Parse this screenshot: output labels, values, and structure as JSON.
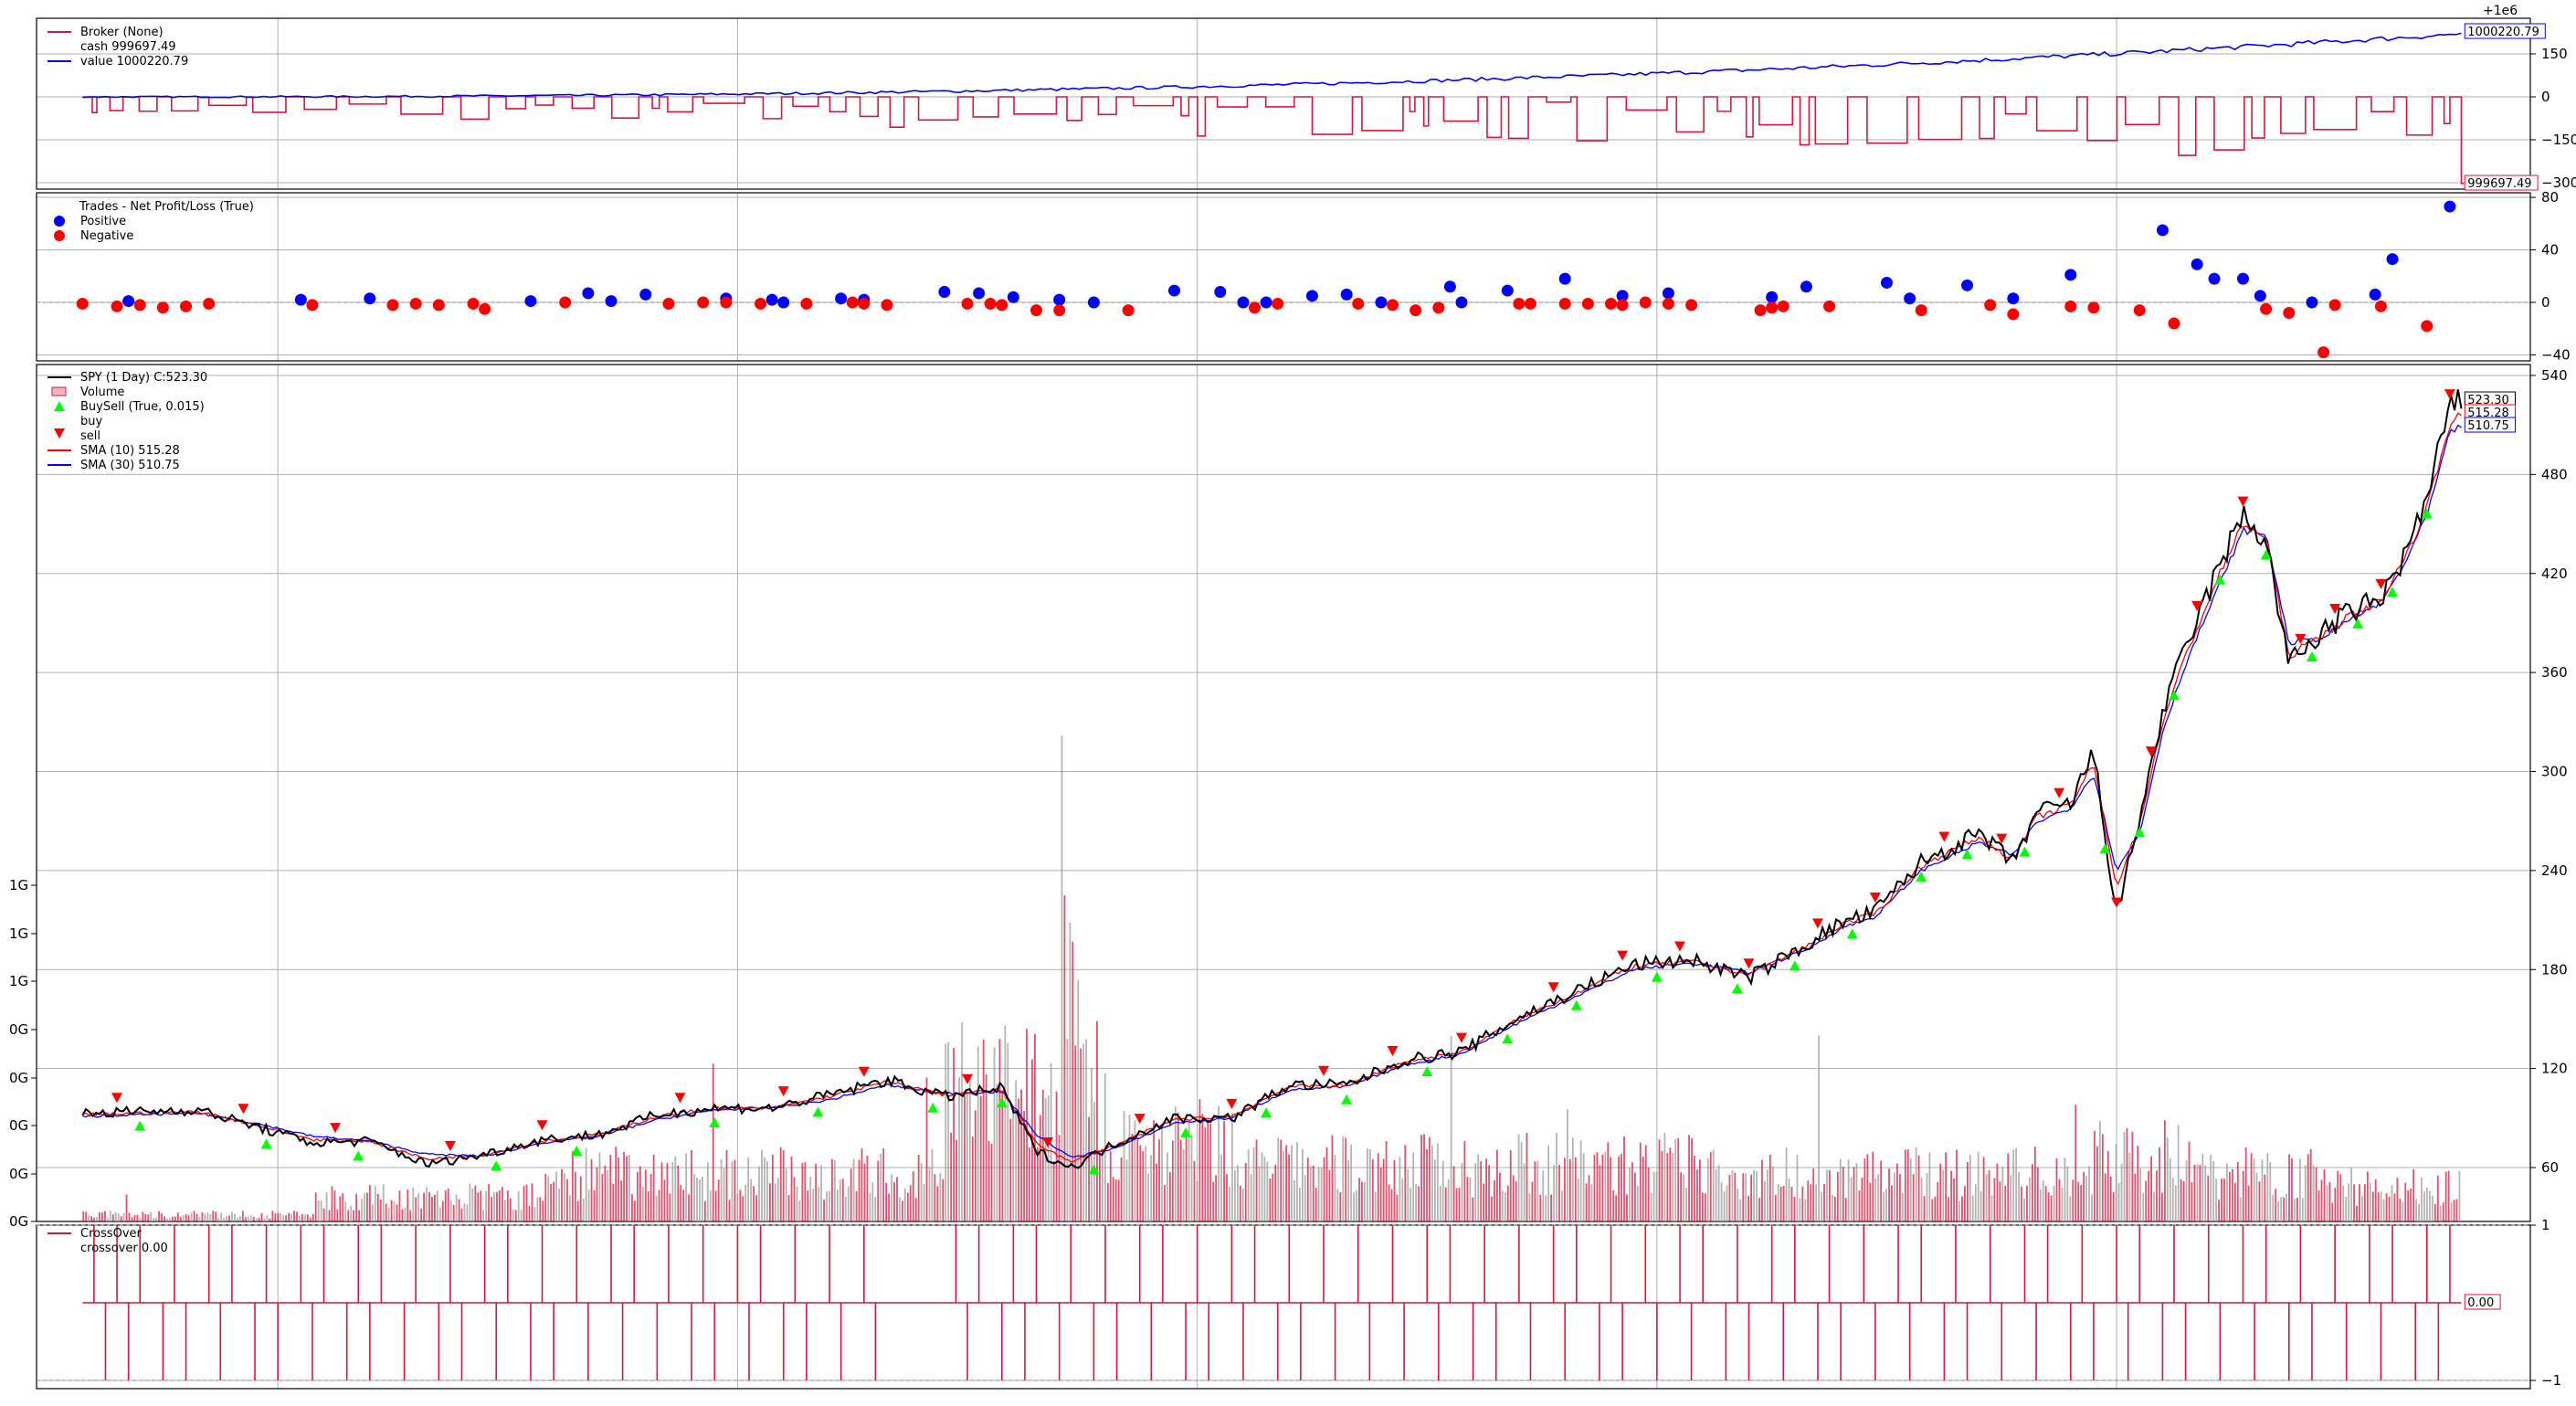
{
  "chart_data": [
    {
      "type": "line",
      "panel": "broker",
      "legend": {
        "placement": "top-left",
        "entries": [
          {
            "name": "Broker (None)",
            "detail": "cash 999697.49",
            "color": "#dc143c"
          },
          {
            "name": "",
            "detail": "value 1000220.79",
            "color": "#0000ff"
          }
        ]
      },
      "offset_label": "+1e6",
      "y_offset": 1000000,
      "yticks": [
        150,
        0,
        -150,
        -300
      ],
      "ytick_labels": [
        "150",
        "0",
        "−150",
        "−300"
      ],
      "ylim": [
        -310,
        200
      ],
      "grid": true,
      "last_value_tags": {
        "value": "1000220.79",
        "cash": "999697.49"
      },
      "series": [
        {
          "name": "value",
          "color": "#0000ff",
          "x_range": [
            2005.0,
            2024.2
          ],
          "start": 0,
          "end": 220.79
        },
        {
          "name": "cash",
          "color": "#dc143c",
          "baseline": 0,
          "end": -302.51
        }
      ]
    },
    {
      "type": "scatter",
      "panel": "trades",
      "legend": {
        "placement": "top-left",
        "title": "Trades - Net Profit/Loss (True)",
        "entries": [
          {
            "name": "Positive",
            "color": "#0000ff"
          },
          {
            "name": "Negative",
            "color": "#ff0000"
          }
        ]
      },
      "yticks": [
        80,
        40,
        0,
        -40
      ],
      "ytick_labels": [
        "80",
        "40",
        "0",
        "−40"
      ],
      "ylim": [
        -45,
        82
      ],
      "grid": true,
      "positive": [
        [
          2005.4,
          1
        ],
        [
          2006.9,
          2
        ],
        [
          2007.5,
          3
        ],
        [
          2008.9,
          1
        ],
        [
          2009.4,
          7
        ],
        [
          2009.6,
          1
        ],
        [
          2009.9,
          6
        ],
        [
          2010.6,
          3
        ],
        [
          2011.0,
          2
        ],
        [
          2011.1,
          0
        ],
        [
          2011.6,
          3
        ],
        [
          2011.8,
          2
        ],
        [
          2012.5,
          8
        ],
        [
          2012.8,
          7
        ],
        [
          2013.1,
          4
        ],
        [
          2013.5,
          2
        ],
        [
          2013.8,
          0
        ],
        [
          2014.5,
          9
        ],
        [
          2014.9,
          8
        ],
        [
          2015.1,
          0
        ],
        [
          2015.3,
          0
        ],
        [
          2015.7,
          5
        ],
        [
          2016.0,
          6
        ],
        [
          2016.3,
          0
        ],
        [
          2016.9,
          12
        ],
        [
          2017.0,
          0
        ],
        [
          2017.4,
          9
        ],
        [
          2017.9,
          18
        ],
        [
          2018.4,
          5
        ],
        [
          2018.8,
          7
        ],
        [
          2019.7,
          4
        ],
        [
          2020.0,
          12
        ],
        [
          2020.7,
          15
        ],
        [
          2020.9,
          3
        ],
        [
          2021.4,
          13
        ],
        [
          2021.8,
          3
        ],
        [
          2022.3,
          21
        ],
        [
          2023.1,
          55
        ],
        [
          2023.4,
          29
        ],
        [
          2023.55,
          18
        ],
        [
          2023.8,
          18
        ],
        [
          2023.95,
          5
        ],
        [
          2024.4,
          0
        ],
        [
          2024.95,
          6
        ],
        [
          2025.1,
          33
        ],
        [
          2025.6,
          73
        ]
      ],
      "negative": [
        [
          2005.0,
          -1
        ],
        [
          2005.3,
          -3
        ],
        [
          2005.5,
          -2
        ],
        [
          2005.7,
          -4
        ],
        [
          2005.9,
          -3
        ],
        [
          2006.1,
          -1
        ],
        [
          2007.0,
          -2
        ],
        [
          2007.7,
          -2
        ],
        [
          2007.9,
          -1
        ],
        [
          2008.1,
          -2
        ],
        [
          2008.4,
          -1
        ],
        [
          2008.5,
          -5
        ],
        [
          2009.2,
          0
        ],
        [
          2010.1,
          -1
        ],
        [
          2010.4,
          0
        ],
        [
          2010.6,
          0
        ],
        [
          2010.9,
          -1
        ],
        [
          2011.3,
          -1
        ],
        [
          2011.7,
          0
        ],
        [
          2011.8,
          -1
        ],
        [
          2012.0,
          -2
        ],
        [
          2012.7,
          -1
        ],
        [
          2012.9,
          -1
        ],
        [
          2013.0,
          -2
        ],
        [
          2013.3,
          -6
        ],
        [
          2013.5,
          -6
        ],
        [
          2014.1,
          -6
        ],
        [
          2015.2,
          -4
        ],
        [
          2015.4,
          -1
        ],
        [
          2016.1,
          -1
        ],
        [
          2016.4,
          -2
        ],
        [
          2016.6,
          -6
        ],
        [
          2016.8,
          -4
        ],
        [
          2017.5,
          -1
        ],
        [
          2017.6,
          -1
        ],
        [
          2017.9,
          -1
        ],
        [
          2018.1,
          -1
        ],
        [
          2018.3,
          -1
        ],
        [
          2018.4,
          -2
        ],
        [
          2018.6,
          0
        ],
        [
          2018.8,
          -1
        ],
        [
          2019.0,
          -2
        ],
        [
          2019.6,
          -6
        ],
        [
          2019.7,
          -4
        ],
        [
          2019.8,
          -3
        ],
        [
          2020.2,
          -3
        ],
        [
          2021.0,
          -6
        ],
        [
          2021.6,
          -2
        ],
        [
          2021.8,
          -9
        ],
        [
          2022.3,
          -3
        ],
        [
          2022.5,
          -4
        ],
        [
          2022.9,
          -6
        ],
        [
          2023.2,
          -16
        ],
        [
          2024.0,
          -5
        ],
        [
          2024.2,
          -8
        ],
        [
          2024.5,
          -38
        ],
        [
          2024.6,
          -2
        ],
        [
          2025.0,
          -3
        ],
        [
          2025.4,
          -18
        ]
      ]
    },
    {
      "type": "line",
      "panel": "price",
      "legend": {
        "placement": "top-left",
        "entries": [
          {
            "name": "SPY (1 Day) C:523.30",
            "color": "#000000"
          },
          {
            "name": "Volume",
            "color": "#dc143c"
          },
          {
            "name": "BuySell (True, 0.015)",
            "detail": "buy",
            "color": "#00ff00"
          },
          {
            "name": "",
            "detail": "sell",
            "color": "#ff0000"
          },
          {
            "name": "SMA (10) 515.28",
            "color": "#ff0000"
          },
          {
            "name": "SMA (30) 510.75",
            "color": "#0000ff"
          }
        ]
      },
      "yticks": [
        540,
        480,
        420,
        360,
        300,
        240,
        180,
        120,
        60
      ],
      "ylim": [
        30,
        545
      ],
      "volume_ticks": [
        "1G",
        "1G",
        "1G",
        "0G",
        "0G",
        "0G",
        "0G",
        "0G"
      ],
      "grid": true,
      "last_value_tags": [
        "523.30",
        "515.28",
        "510.75"
      ],
      "x": [
        2005.0,
        2006.0,
        2006.5,
        2007.0,
        2007.5,
        2008.0,
        2008.5,
        2009.0,
        2009.5,
        2010.0,
        2010.5,
        2011.0,
        2011.5,
        2012.0,
        2012.5,
        2013.0,
        2013.3,
        2013.6,
        2014.0,
        2014.5,
        2015.0,
        2015.5,
        2016.0,
        2016.5,
        2017.0,
        2017.5,
        2018.0,
        2018.5,
        2019.0,
        2019.5,
        2020.0,
        2020.3,
        2020.6,
        2021.0,
        2021.5,
        2021.8,
        2022.0,
        2022.3,
        2022.5,
        2022.7,
        2022.9,
        2023.1,
        2023.3,
        2023.6,
        2023.8,
        2024.0,
        2024.2,
        2024.5,
        2024.7,
        2025.0,
        2025.2,
        2025.4,
        2025.6,
        2025.7
      ],
      "series": [
        {
          "name": "SPY",
          "color": "#000000",
          "values": [
            93,
            95,
            85,
            75,
            76,
            62,
            68,
            77,
            80,
            92,
            96,
            96,
            104,
            113,
            103,
            108,
            70,
            60,
            75,
            90,
            90,
            110,
            110,
            125,
            130,
            151,
            167,
            183,
            186,
            175,
            195,
            208,
            215,
            245,
            262,
            245,
            275,
            280,
            312,
            212,
            272,
            335,
            375,
            425,
            455,
            440,
            365,
            385,
            395,
            405,
            430,
            465,
            520,
            523
          ]
        },
        {
          "name": "SMA (10)",
          "color": "#ff0000",
          "values": [
            92,
            94,
            86,
            77,
            76,
            65,
            68,
            76,
            80,
            91,
            96,
            96,
            103,
            112,
            104,
            107,
            75,
            63,
            74,
            89,
            91,
            109,
            110,
            124,
            130,
            150,
            166,
            182,
            185,
            177,
            194,
            207,
            214,
            243,
            260,
            247,
            272,
            280,
            305,
            230,
            268,
            330,
            370,
            420,
            450,
            442,
            370,
            383,
            393,
            404,
            428,
            460,
            512,
            515
          ]
        },
        {
          "name": "SMA (30)",
          "color": "#0000ff",
          "values": [
            91,
            93,
            87,
            79,
            76,
            68,
            67,
            75,
            79,
            89,
            95,
            96,
            101,
            110,
            105,
            106,
            80,
            66,
            72,
            87,
            90,
            107,
            109,
            122,
            129,
            148,
            164,
            180,
            184,
            178,
            192,
            205,
            212,
            240,
            257,
            249,
            269,
            278,
            299,
            240,
            262,
            324,
            365,
            414,
            446,
            444,
            378,
            381,
            391,
            402,
            425,
            455,
            505,
            510
          ]
        }
      ],
      "buy_markers": [
        2005.5,
        2006.6,
        2007.4,
        2008.6,
        2009.3,
        2010.5,
        2011.4,
        2012.4,
        2013.0,
        2013.8,
        2014.6,
        2015.3,
        2016.0,
        2016.7,
        2017.4,
        2018.0,
        2018.7,
        2019.4,
        2019.9,
        2020.4,
        2021.0,
        2021.4,
        2021.9,
        2022.6,
        2022.9,
        2023.2,
        2023.6,
        2024.0,
        2024.4,
        2024.8,
        2025.1,
        2025.4
      ],
      "sell_markers": [
        2005.3,
        2006.4,
        2007.2,
        2008.2,
        2009.0,
        2010.2,
        2011.1,
        2011.8,
        2012.7,
        2013.4,
        2014.2,
        2015.0,
        2015.8,
        2016.4,
        2017.0,
        2017.8,
        2018.4,
        2018.9,
        2019.5,
        2020.1,
        2020.6,
        2021.2,
        2021.7,
        2022.2,
        2022.7,
        2023.0,
        2023.4,
        2023.8,
        2024.3,
        2024.6,
        2025.0,
        2025.6
      ]
    },
    {
      "type": "line",
      "panel": "crossover",
      "legend": {
        "placement": "top-left",
        "entries": [
          {
            "name": "CrossOver",
            "detail": "crossover 0.00",
            "color": "#dc143c"
          }
        ]
      },
      "yticks": [
        1,
        -1
      ],
      "ytick_labels": [
        "1",
        "−1"
      ],
      "ylim": [
        -1.1,
        1.1
      ],
      "grid": true,
      "last_value_tags": [
        "0.00"
      ],
      "cross_up": [
        2005.1,
        2005.3,
        2005.5,
        2005.8,
        2006.1,
        2006.3,
        2006.6,
        2006.9,
        2007.1,
        2007.4,
        2007.6,
        2007.9,
        2008.2,
        2008.5,
        2008.7,
        2009.0,
        2009.3,
        2009.6,
        2009.8,
        2010.1,
        2010.4,
        2010.7,
        2010.9,
        2011.2,
        2011.5,
        2011.8,
        2012.6,
        2012.8,
        2013.1,
        2013.3,
        2013.6,
        2013.9,
        2014.2,
        2014.4,
        2014.7,
        2015.0,
        2015.2,
        2015.5,
        2015.8,
        2016.1,
        2016.4,
        2016.7,
        2016.9,
        2017.2,
        2017.5,
        2017.8,
        2018.0,
        2018.3,
        2018.6,
        2018.9,
        2019.1,
        2019.4,
        2019.7,
        2019.9,
        2020.2,
        2020.5,
        2020.8,
        2021.0,
        2021.3,
        2021.6,
        2021.9,
        2022.1,
        2022.4,
        2022.7,
        2022.9,
        2023.2,
        2023.5,
        2023.8,
        2024.0,
        2024.3,
        2024.6,
        2024.9,
        2025.1,
        2025.4,
        2025.6
      ],
      "cross_down": [
        2005.2,
        2005.4,
        2005.7,
        2005.9,
        2006.2,
        2006.5,
        2006.7,
        2007.0,
        2007.3,
        2007.5,
        2007.8,
        2008.1,
        2008.3,
        2008.6,
        2008.9,
        2009.1,
        2009.4,
        2009.7,
        2010.0,
        2010.3,
        2010.5,
        2010.8,
        2011.1,
        2011.3,
        2011.6,
        2011.9,
        2012.7,
        2013.0,
        2013.2,
        2013.5,
        2013.8,
        2014.0,
        2014.3,
        2014.6,
        2014.8,
        2015.1,
        2015.4,
        2015.6,
        2015.9,
        2016.2,
        2016.5,
        2016.8,
        2017.1,
        2017.3,
        2017.6,
        2017.9,
        2018.2,
        2018.4,
        2018.7,
        2019.0,
        2019.3,
        2019.5,
        2019.8,
        2020.1,
        2020.3,
        2020.6,
        2020.9,
        2021.2,
        2021.4,
        2021.7,
        2022.0,
        2022.3,
        2022.5,
        2022.8,
        2023.1,
        2023.3,
        2023.6,
        2023.9,
        2024.2,
        2024.4,
        2024.7,
        2025.0,
        2025.3,
        2025.5
      ]
    }
  ]
}
